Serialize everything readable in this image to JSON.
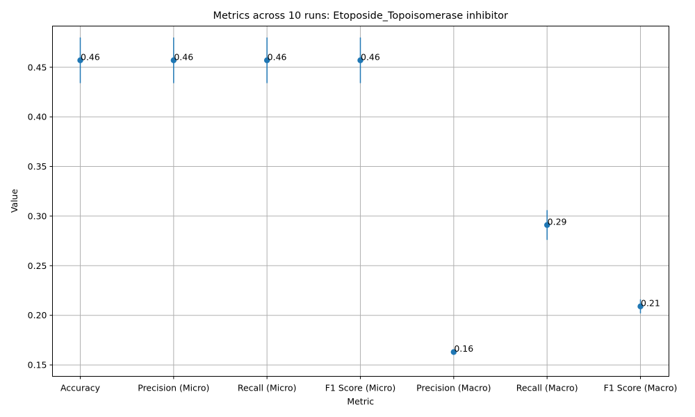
{
  "chart_data": {
    "type": "scatter",
    "title": "Metrics across 10 runs: Etoposide_Topoisomerase inhibitor",
    "xlabel": "Metric",
    "ylabel": "Value",
    "categories": [
      "Accuracy",
      "Precision (Micro)",
      "Recall (Micro)",
      "F1 Score (Micro)",
      "Precision (Macro)",
      "Recall (Macro)",
      "F1 Score (Macro)"
    ],
    "values": [
      0.457,
      0.457,
      0.457,
      0.457,
      0.163,
      0.291,
      0.209
    ],
    "errors": [
      0.023,
      0.023,
      0.023,
      0.023,
      0.002,
      0.015,
      0.007
    ],
    "data_labels": [
      "0.46",
      "0.46",
      "0.46",
      "0.46",
      "0.16",
      "0.29",
      "0.21"
    ],
    "ylim": [
      0.1385,
      0.4915
    ],
    "yticks": [
      0.15,
      0.2,
      0.25,
      0.3,
      0.35,
      0.4,
      0.45
    ],
    "ytick_labels": [
      "0.15",
      "0.20",
      "0.25",
      "0.30",
      "0.35",
      "0.40",
      "0.45"
    ],
    "grid": true,
    "color": "#1f77b4"
  }
}
